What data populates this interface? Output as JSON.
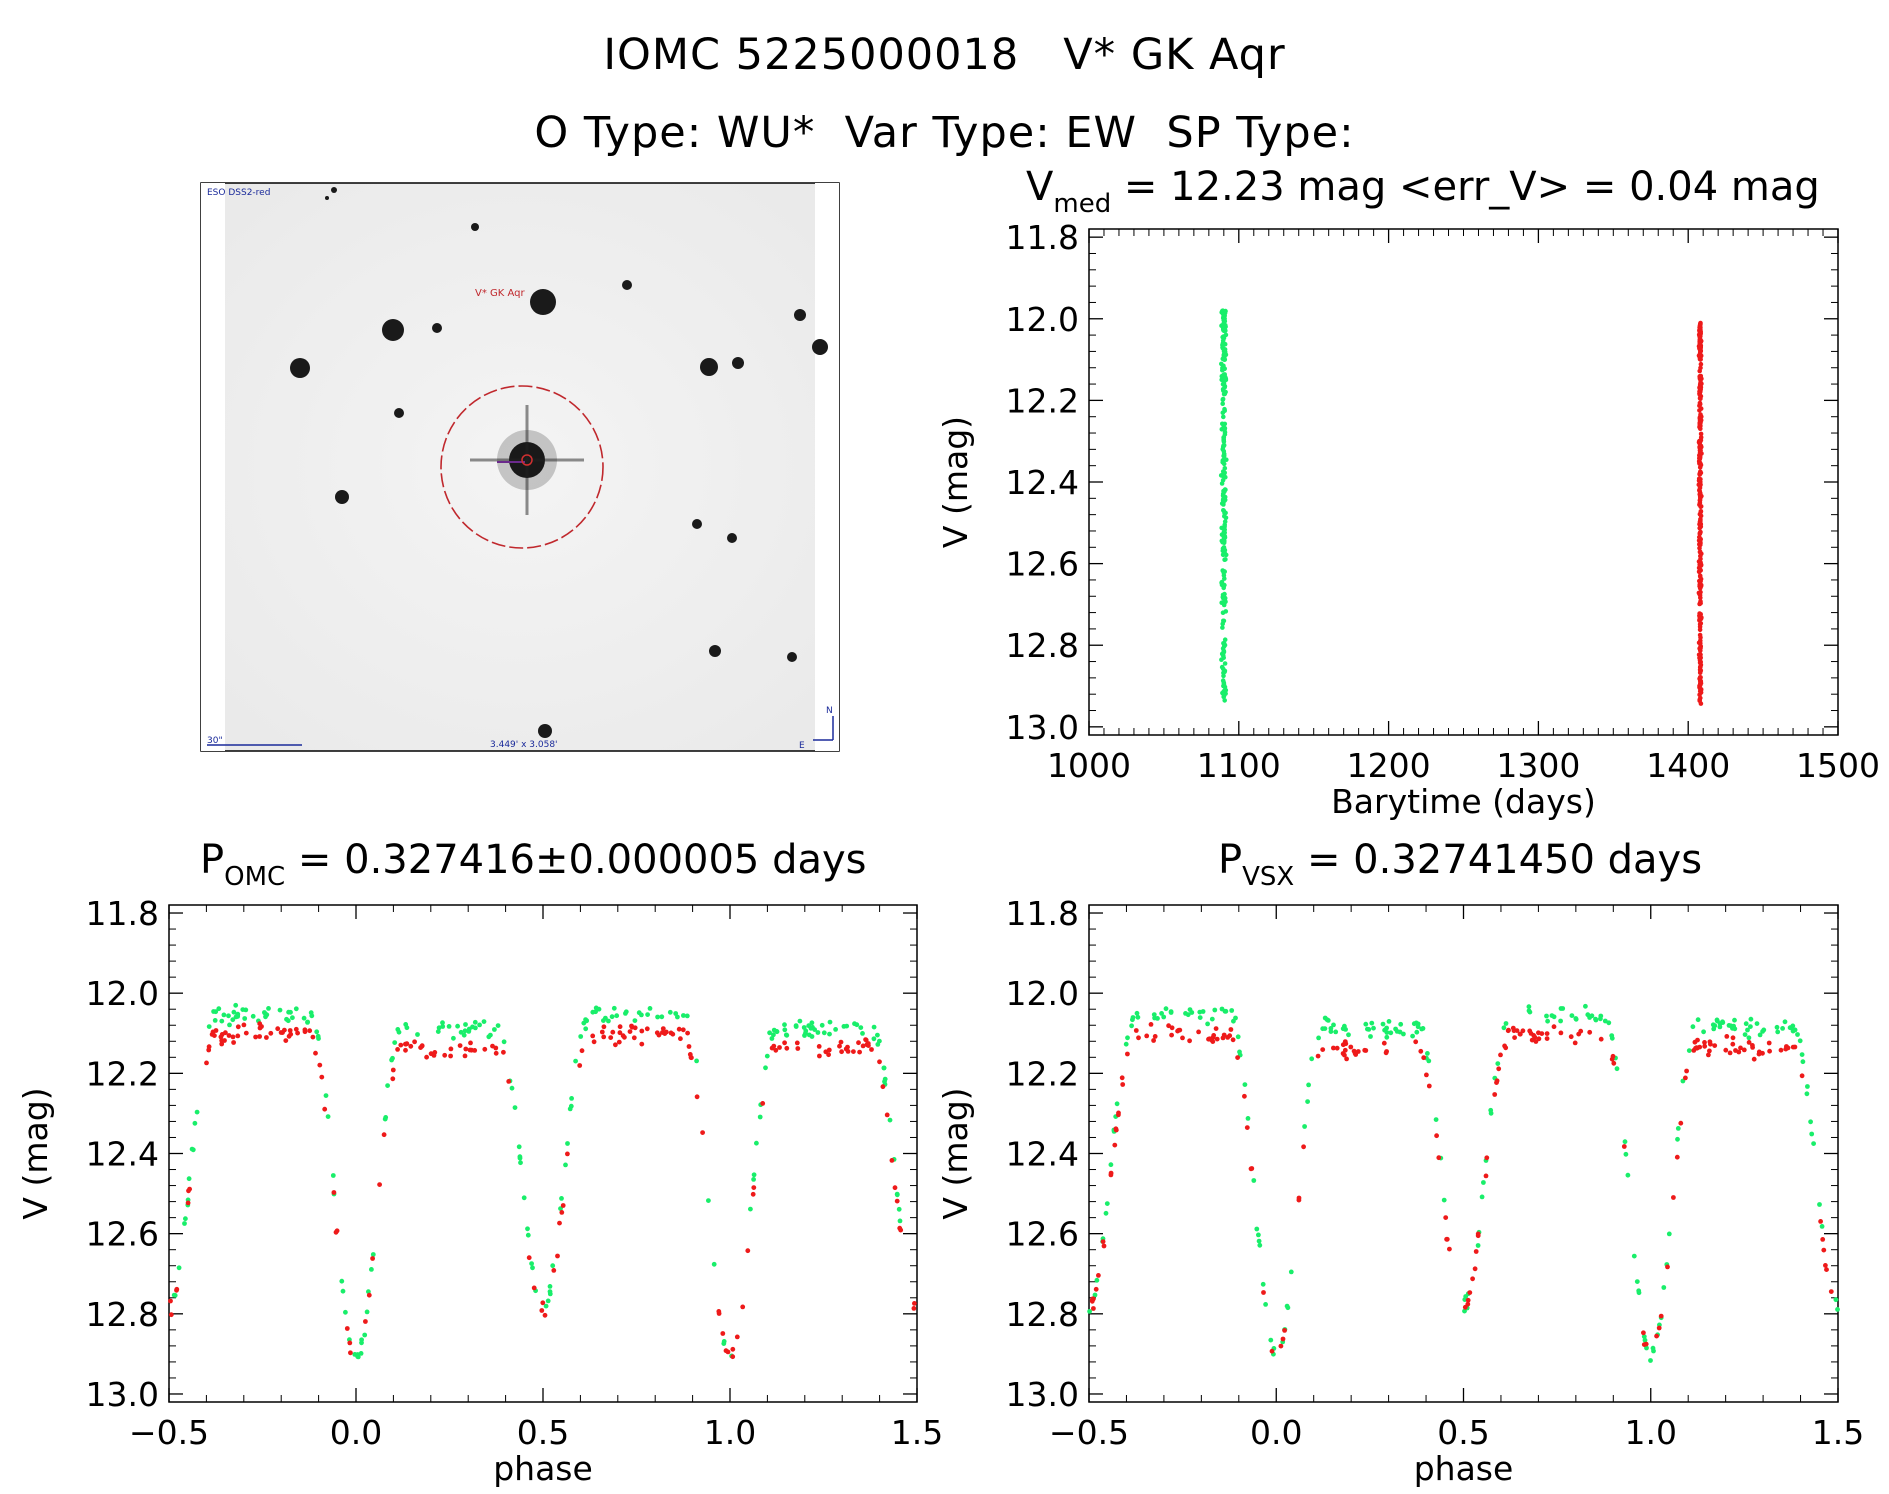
{
  "header": {
    "title_line1": "IOMC 5225000018   V* GK Aqr",
    "title_line2": "O Type: WU*  Var Type: EW  SP Type:"
  },
  "image_panel": {
    "survey_label": "ESO DSS2-red",
    "object_label": "V* GK Aqr",
    "scale_label": "30\"",
    "fov_label": "3.449' x 3.058'",
    "compass_n": "N",
    "compass_e": "E"
  },
  "colors": {
    "green_series": "#19ee6a",
    "red_series": "#ee1a1a",
    "marker_circle": "#c0282d"
  },
  "chart_data": [
    {
      "id": "lightcurve",
      "type": "scatter",
      "title_base": "V",
      "title_sub": "med",
      "title_rest": " = 12.23 mag <err_V> = 0.04 mag",
      "xlabel": "Barytime (days)",
      "ylabel": "V (mag)",
      "xlim": [
        1000,
        1500
      ],
      "ylim": [
        13.02,
        11.78
      ],
      "xticks": [
        1000,
        1100,
        1200,
        1300,
        1400,
        1500
      ],
      "yticks": [
        11.8,
        12.0,
        12.2,
        12.4,
        12.6,
        12.8,
        13.0
      ],
      "series": [
        {
          "color": "green",
          "x_center": 1090,
          "x_spread": 6,
          "y_range": [
            11.98,
            12.95
          ],
          "count": 260
        },
        {
          "color": "red",
          "x_center": 1408,
          "x_spread": 3,
          "y_range": [
            12.01,
            12.95
          ],
          "count": 320
        }
      ]
    },
    {
      "id": "phase_omc",
      "type": "scatter",
      "title_base": "P",
      "title_sub": "OMC",
      "title_rest": " = 0.327416±0.000005 days",
      "xlabel": "phase",
      "ylabel": "V (mag)",
      "xlim": [
        -0.5,
        1.5
      ],
      "ylim": [
        13.02,
        11.78
      ],
      "xticks": [
        -0.5,
        0.0,
        0.5,
        1.0,
        1.5
      ],
      "yticks": [
        11.8,
        12.0,
        12.2,
        12.4,
        12.6,
        12.8,
        13.0
      ],
      "model": {
        "max_mag": 12.07,
        "primary_min": 12.9,
        "secondary_min": 12.78,
        "red_offset": 0.05
      },
      "series": [
        {
          "color": "green",
          "count": 230
        },
        {
          "color": "red",
          "count": 200
        }
      ]
    },
    {
      "id": "phase_vsx",
      "type": "scatter",
      "title_base": "P",
      "title_sub": "VSX",
      "title_rest": " = 0.32741450 days",
      "xlabel": "phase",
      "ylabel": "V (mag)",
      "xlim": [
        -0.5,
        1.5
      ],
      "ylim": [
        13.02,
        11.78
      ],
      "xticks": [
        -0.5,
        0.0,
        0.5,
        1.0,
        1.5
      ],
      "yticks": [
        11.8,
        12.0,
        12.2,
        12.4,
        12.6,
        12.8,
        13.0
      ],
      "model": {
        "max_mag": 12.07,
        "primary_min": 12.9,
        "secondary_min": 12.78,
        "red_offset": 0.05
      },
      "series": [
        {
          "color": "green",
          "count": 230
        },
        {
          "color": "red",
          "count": 200
        }
      ]
    }
  ]
}
